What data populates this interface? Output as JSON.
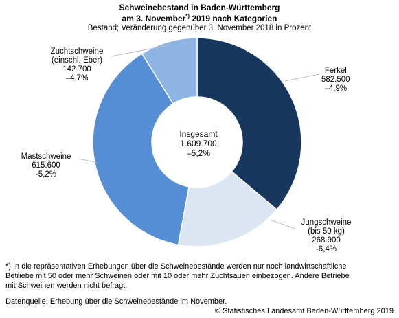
{
  "chart_data": {
    "type": "pie",
    "title_line1": "Schweinebestand in Baden-Württemberg",
    "title_line2_a": "am 3. November",
    "title_line2_sup": "*)",
    "title_line2_b": " 2019 nach Kategorien",
    "subtitle": "Bestand; Veränderung gegenüber 3. November 2018 in Prozent",
    "center": {
      "label": "Insgesamt",
      "value": "1.609.700",
      "change": "–5,2%"
    },
    "slices": [
      {
        "name": "Ferkel",
        "name2": "",
        "value": 582500,
        "value_label": "582.500",
        "change": "–4,9%",
        "color": "#17375e"
      },
      {
        "name": "Jungschweine",
        "name2": "(bis 50 kg)",
        "value": 268900,
        "value_label": "268.900",
        "change": "-6,4%",
        "color": "#dce6f2"
      },
      {
        "name": "Mastschweine",
        "name2": "",
        "value": 615600,
        "value_label": "615.600",
        "change": "-5,2%",
        "color": "#558ed5"
      },
      {
        "name": "Zuchtschweine",
        "name2": "(einschl. Eber)",
        "value": 142700,
        "value_label": "142.700",
        "change": "–4,7%",
        "color": "#8eb4e3"
      }
    ]
  },
  "footnote_line1": "*) In die repräsentativen Erhebungen über die Schweinebestände werden nur noch landwirtschaftliche",
  "footnote_line2": "Betriebe mit 50 oder mehr Schweinen oder mit 10 oder mehr Zuchtsauen einbezogen. Andere Betriebe",
  "footnote_line3": "mit Schweinen werden nicht befragt.",
  "source": "Datenquelle: Erhebung über die Schweinebestände im November.",
  "copyright": "© Statistisches Landesamt Baden-Württemberg 2019"
}
